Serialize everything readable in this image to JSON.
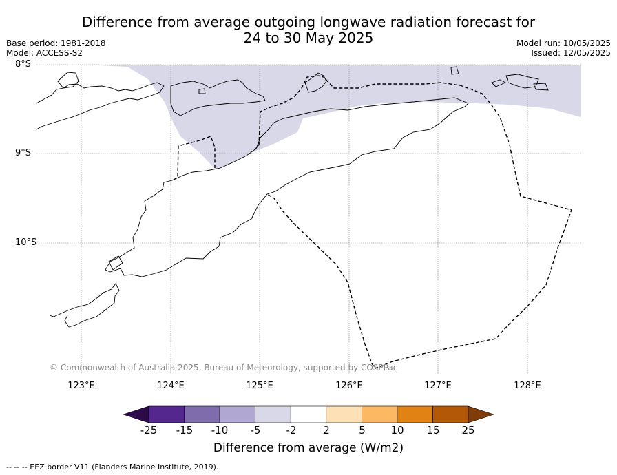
{
  "title": {
    "line1": "Difference from average outgoing longwave radiation forecast for",
    "line2": "24 to 30 May 2025"
  },
  "meta": {
    "base_period": "Base period: 1981-2018",
    "model": "Model: ACCESS-S2",
    "model_run": "Model run: 10/05/2025",
    "issued": "Issued: 12/05/2025"
  },
  "map": {
    "latitudes": [
      "8°S",
      "9°S",
      "10°S"
    ],
    "longitudes": [
      "123°E",
      "124°E",
      "125°E",
      "126°E",
      "127°E",
      "128°E"
    ],
    "copyright": "© Commonwealth of Australia 2025, Bureau of Meteorology, supported by COSPPac",
    "anomaly_band": "-5 to -2",
    "anomaly_color": "#d8d8e8"
  },
  "colorbar": {
    "ticks": [
      "-25",
      "-15",
      "-10",
      "-5",
      "-2",
      "2",
      "5",
      "10",
      "15",
      "25"
    ],
    "colors": [
      "#2d0a4a",
      "#54278f",
      "#7e6cac",
      "#b0a8d3",
      "#d8d8e8",
      "#ffffff",
      "#fee0b6",
      "#fdb863",
      "#e08214",
      "#b35806",
      "#7f3b08"
    ],
    "title": "Difference from average (W/m2)"
  },
  "footnote": "--  --  -- EEZ border V11 (Flanders Marine Institute, 2019)."
}
